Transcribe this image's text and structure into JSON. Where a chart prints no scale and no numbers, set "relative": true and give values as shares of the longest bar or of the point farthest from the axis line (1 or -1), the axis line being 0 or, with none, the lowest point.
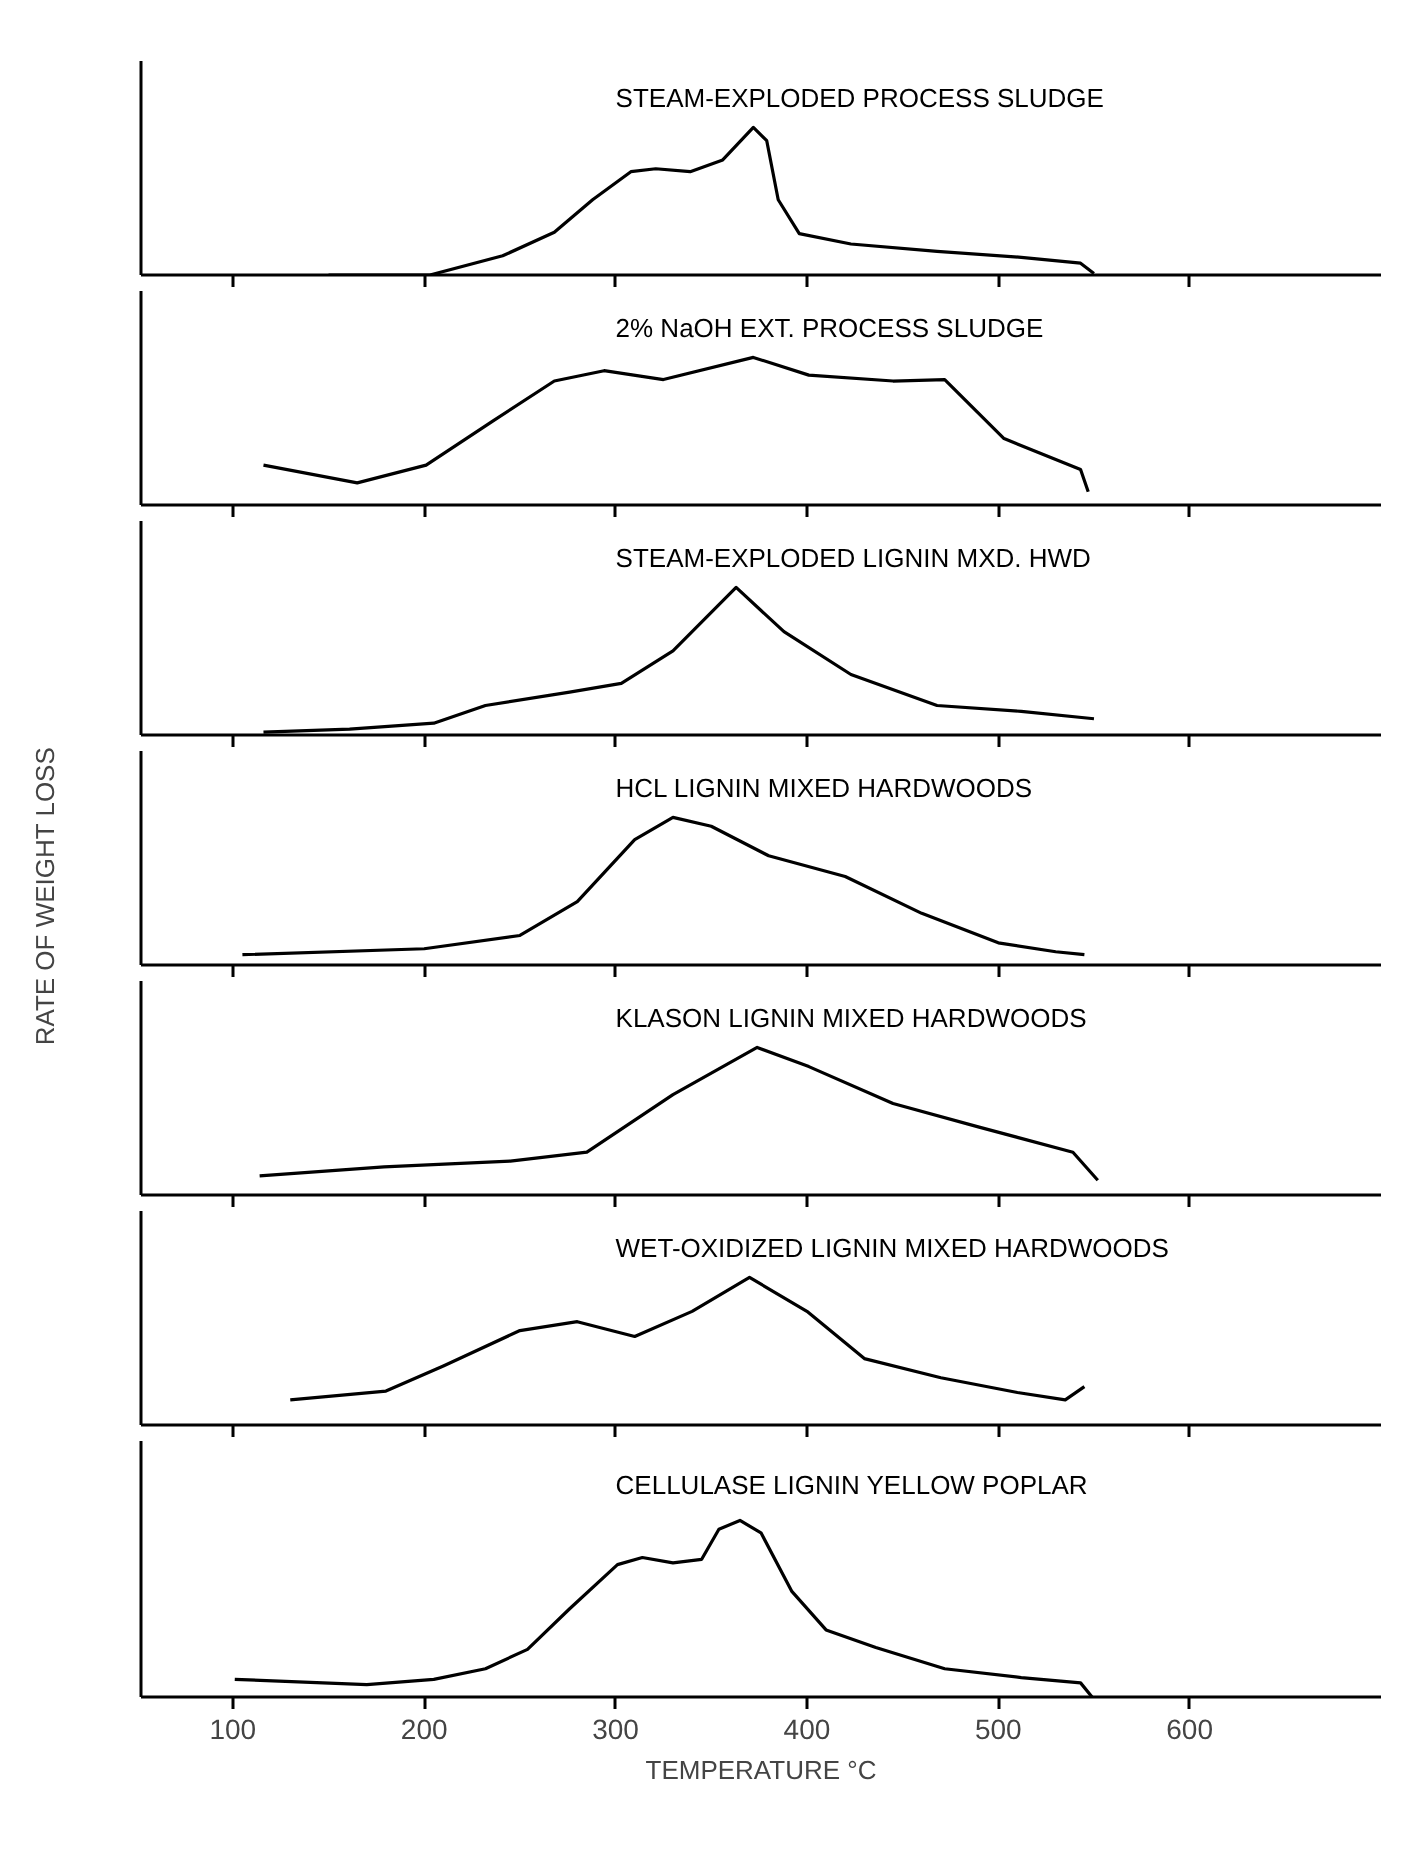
{
  "chart_data": [
    {
      "type": "line",
      "title": "STEAM-EXPLODED PROCESS SLUDGE",
      "relative": true,
      "xlim": [
        52,
        700
      ],
      "xticks": [
        100,
        200,
        300,
        400,
        500,
        600
      ],
      "tick_labels": false,
      "x": [
        150,
        203,
        241,
        268,
        288,
        308,
        321,
        339,
        356,
        372,
        379,
        385,
        396,
        423,
        468,
        512,
        543,
        550
      ],
      "series": [
        {
          "color": "#000000",
          "values": [
            0,
            0,
            0.13,
            0.29,
            0.51,
            0.7,
            0.72,
            0.7,
            0.78,
            1.0,
            0.91,
            0.51,
            0.28,
            0.21,
            0.16,
            0.12,
            0.08,
            0.01
          ]
        }
      ]
    },
    {
      "type": "line",
      "title": "2% NaOH EXT. PROCESS SLUDGE",
      "relative": true,
      "xlim": [
        52,
        700
      ],
      "xticks": [
        100,
        200,
        300,
        400,
        500,
        600
      ],
      "tick_labels": false,
      "x": [
        116,
        165,
        201,
        236,
        268,
        294,
        325,
        372,
        401,
        445,
        472,
        503,
        543,
        547
      ],
      "series": [
        {
          "color": "#000000",
          "values": [
            0.27,
            0.15,
            0.27,
            0.57,
            0.84,
            0.91,
            0.85,
            1.0,
            0.88,
            0.84,
            0.85,
            0.45,
            0.24,
            0.09
          ]
        }
      ]
    },
    {
      "type": "line",
      "title": "STEAM-EXPLODED LIGNIN MXD. HWD",
      "relative": true,
      "xlim": [
        52,
        700
      ],
      "xticks": [
        100,
        200,
        300,
        400,
        500,
        600
      ],
      "tick_labels": false,
      "x": [
        116,
        161,
        205,
        232,
        276,
        303,
        330,
        363,
        388,
        423,
        468,
        512,
        550
      ],
      "series": [
        {
          "color": "#000000",
          "values": [
            0.02,
            0.04,
            0.08,
            0.2,
            0.29,
            0.35,
            0.57,
            1.0,
            0.7,
            0.41,
            0.2,
            0.16,
            0.11
          ]
        }
      ]
    },
    {
      "type": "line",
      "title": "HCL LIGNIN MIXED HARDWOODS",
      "ylabel": "RATE OF WEIGHT LOSS",
      "relative": true,
      "xlim": [
        52,
        700
      ],
      "xticks": [
        100,
        200,
        300,
        400,
        500,
        600
      ],
      "tick_labels": false,
      "x": [
        105,
        200,
        250,
        280,
        310,
        330,
        350,
        380,
        420,
        460,
        500,
        530,
        545
      ],
      "series": [
        {
          "color": "#000000",
          "values": [
            0.07,
            0.11,
            0.2,
            0.43,
            0.85,
            1.0,
            0.94,
            0.74,
            0.6,
            0.35,
            0.15,
            0.09,
            0.07
          ]
        }
      ]
    },
    {
      "type": "line",
      "title": "KLASON LIGNIN MIXED HARDWOODS",
      "relative": true,
      "xlim": [
        52,
        700
      ],
      "xticks": [
        100,
        200,
        300,
        400,
        500,
        600
      ],
      "tick_labels": false,
      "x": [
        114,
        179,
        245,
        285,
        330,
        374,
        401,
        445,
        490,
        539,
        552
      ],
      "series": [
        {
          "color": "#000000",
          "values": [
            0.13,
            0.19,
            0.23,
            0.29,
            0.68,
            1.0,
            0.87,
            0.62,
            0.46,
            0.29,
            0.1
          ]
        }
      ]
    },
    {
      "type": "line",
      "title": "WET-OXIDIZED LIGNIN MIXED HARDWOODS",
      "relative": true,
      "xlim": [
        52,
        700
      ],
      "xticks": [
        100,
        200,
        300,
        400,
        500,
        600
      ],
      "tick_labels": false,
      "x": [
        130,
        180,
        210,
        250,
        280,
        310,
        340,
        370,
        400,
        430,
        470,
        510,
        535,
        545
      ],
      "series": [
        {
          "color": "#000000",
          "values": [
            0.17,
            0.23,
            0.4,
            0.64,
            0.7,
            0.6,
            0.77,
            1.0,
            0.77,
            0.45,
            0.32,
            0.22,
            0.17,
            0.26
          ]
        }
      ]
    },
    {
      "type": "line",
      "title": "CELLULASE LIGNIN YELLOW POPLAR",
      "xlabel": "TEMPERATURE °C",
      "relative": true,
      "xlim": [
        52,
        700
      ],
      "xticks": [
        100,
        200,
        300,
        400,
        500,
        600
      ],
      "tick_labels": "x",
      "x": [
        101,
        170,
        205,
        232,
        254,
        276,
        301,
        314,
        330,
        345,
        354,
        365,
        376,
        392,
        410,
        436,
        472,
        512,
        543,
        549
      ],
      "series": [
        {
          "color": "#000000",
          "values": [
            0.1,
            0.07,
            0.1,
            0.16,
            0.27,
            0.5,
            0.75,
            0.79,
            0.76,
            0.78,
            0.95,
            1.0,
            0.93,
            0.6,
            0.38,
            0.28,
            0.16,
            0.11,
            0.08,
            0.0
          ]
        }
      ]
    }
  ]
}
